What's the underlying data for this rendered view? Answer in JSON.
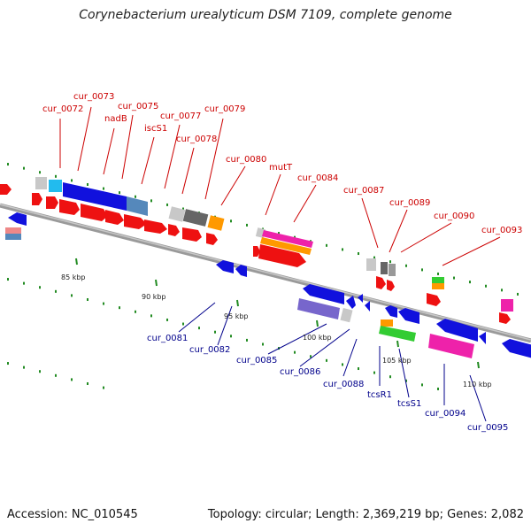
{
  "title": "Corynebacterium urealyticum DSM 7109, complete genome",
  "footer": {
    "accession": "Accession: NC_010545",
    "summary": "Topology: circular; Length: 2,369,219 bp; Genes: 2,082"
  },
  "colors": {
    "upper_label": "#cc0000",
    "lower_label": "#00008b",
    "backbone": "#808080",
    "tick_mark": "#228b22"
  },
  "ticks": [
    "85 kbp",
    "90 kbp",
    "95 kbp",
    "100 kbp",
    "105 kbp",
    "110 kbp"
  ],
  "upper_labels": [
    "cur_0072",
    "cur_0073",
    "nadB",
    "cur_0075",
    "iscS1",
    "cur_0077",
    "cur_0078",
    "cur_0079",
    "cur_0080",
    "mutT",
    "cur_0084",
    "cur_0087",
    "cur_0089",
    "cur_0090",
    "cur_0093"
  ],
  "lower_labels": [
    "cur_0081",
    "cur_0082",
    "cur_0085",
    "cur_0086",
    "cur_0088",
    "tcsR1",
    "tcsS1",
    "cur_0094",
    "cur_0095"
  ]
}
